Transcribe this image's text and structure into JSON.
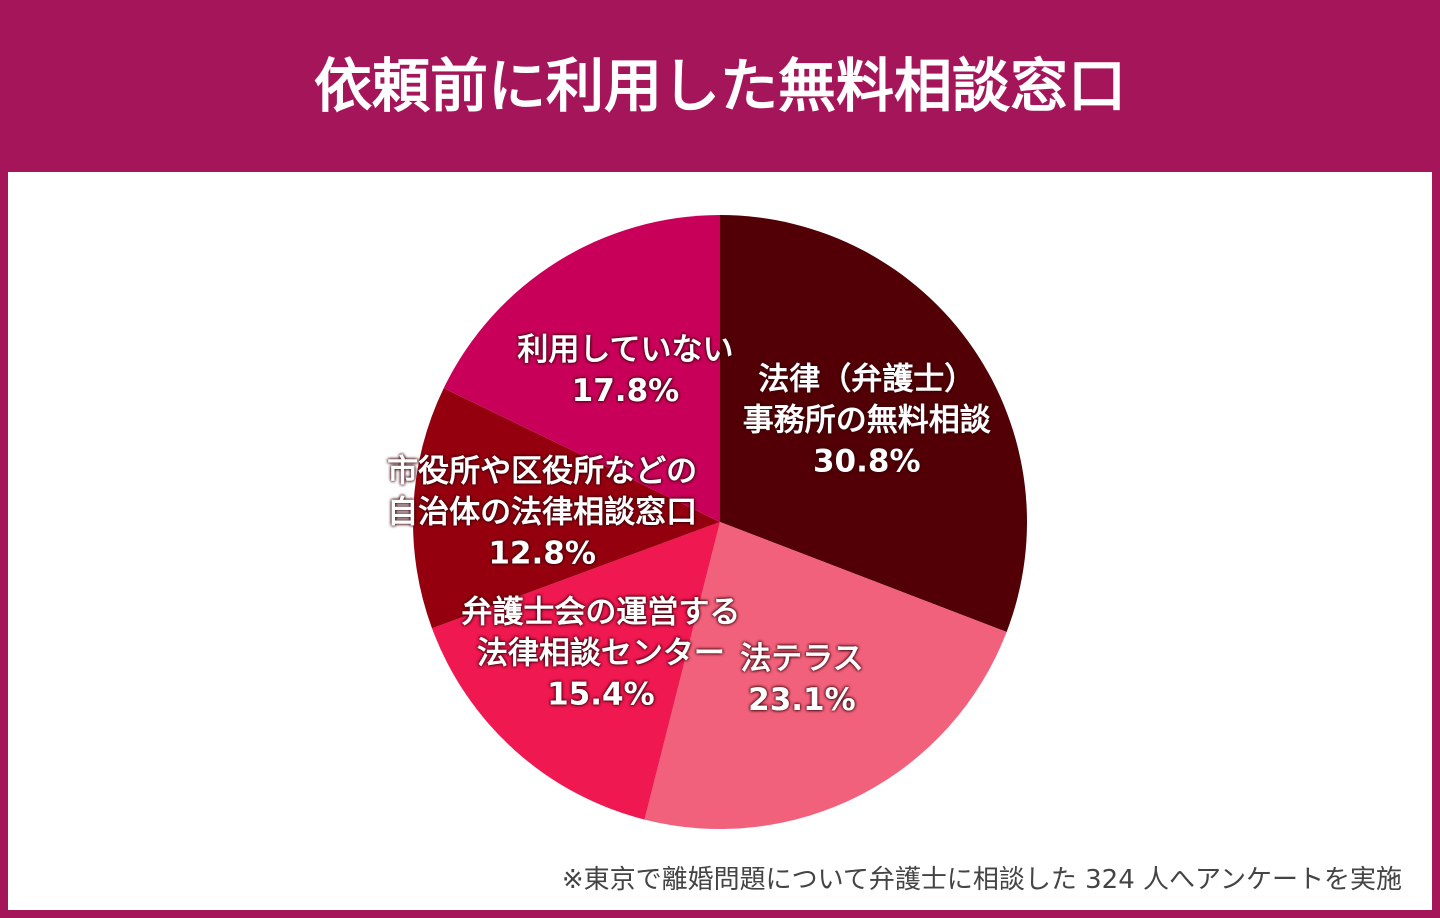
{
  "chart_data": {
    "type": "pie",
    "title": "依頼前に利用した無料相談窓口",
    "categories": [
      "法律（弁護士）\n事務所の無料相談",
      "法テラス",
      "弁護士会の運営する\n法律相談センター",
      "市役所や区役所などの\n自治体の法律相談窓口",
      "利用していない"
    ],
    "values": [
      30.8,
      23.1,
      15.4,
      12.8,
      17.8
    ],
    "value_labels": [
      "30.8%",
      "23.1%",
      "15.4%",
      "12.8%",
      "17.8%"
    ],
    "colors": [
      "#520006",
      "#f2617b",
      "#f01850",
      "#95000f",
      "#c9005a"
    ],
    "note": "※東京で離婚問題について弁護士に相談した 324 人へアンケートを実施"
  }
}
